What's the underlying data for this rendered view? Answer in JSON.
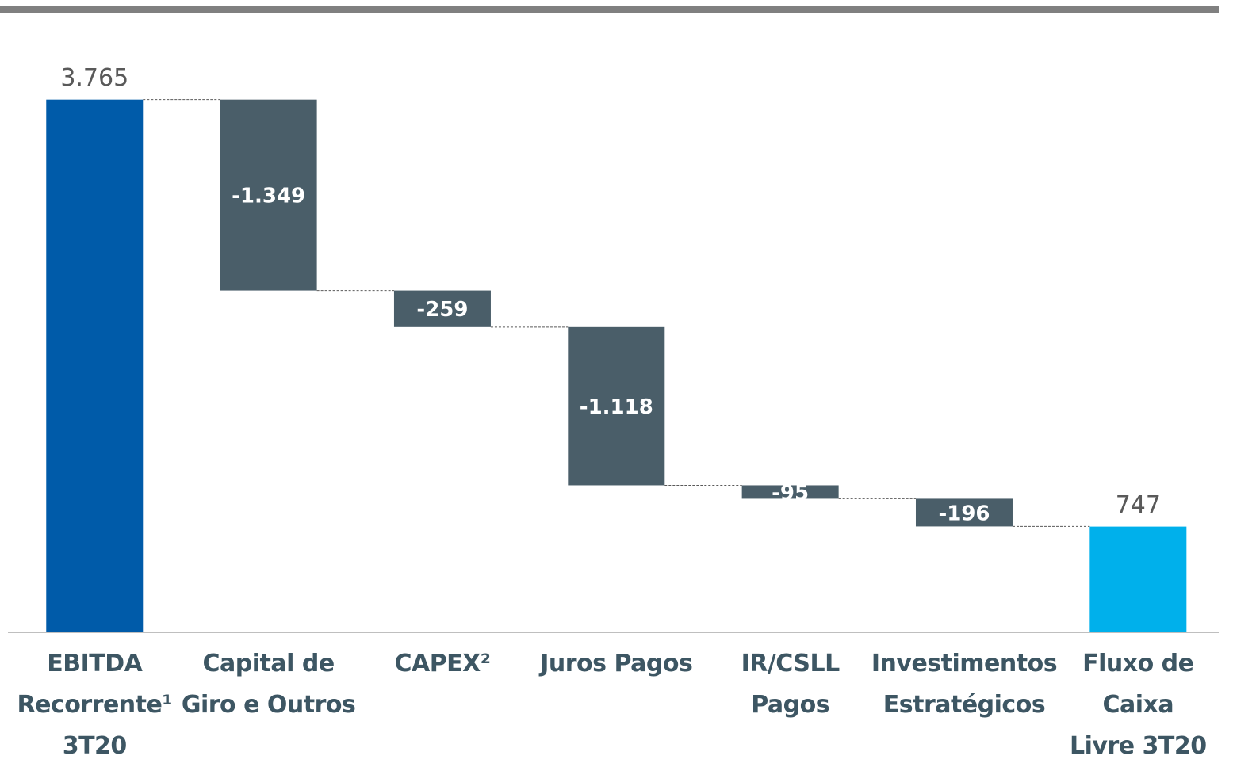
{
  "chart_data": {
    "type": "waterfall",
    "categories": [
      "EBITDA\nRecorrente¹\n3T20",
      "Capital de\nGiro e Outros",
      "CAPEX²",
      "Juros Pagos",
      "IR/CSLL\nPagos",
      "Investimentos\nEstratégicos",
      "Fluxo de\nCaixa\nLivre 3T20"
    ],
    "measure": [
      "absolute",
      "relative",
      "relative",
      "relative",
      "relative",
      "relative",
      "total"
    ],
    "values": [
      3765,
      -1349,
      -259,
      -1118,
      -95,
      -196,
      747
    ],
    "value_labels": [
      "3.765",
      "-1.349",
      "-259",
      "-1.118",
      "-95",
      "-196",
      "747"
    ],
    "colors": {
      "start": "#005ba9",
      "negative": "#4a5e69",
      "end": "#00b0eb"
    },
    "ylim": [
      0,
      4200
    ]
  }
}
